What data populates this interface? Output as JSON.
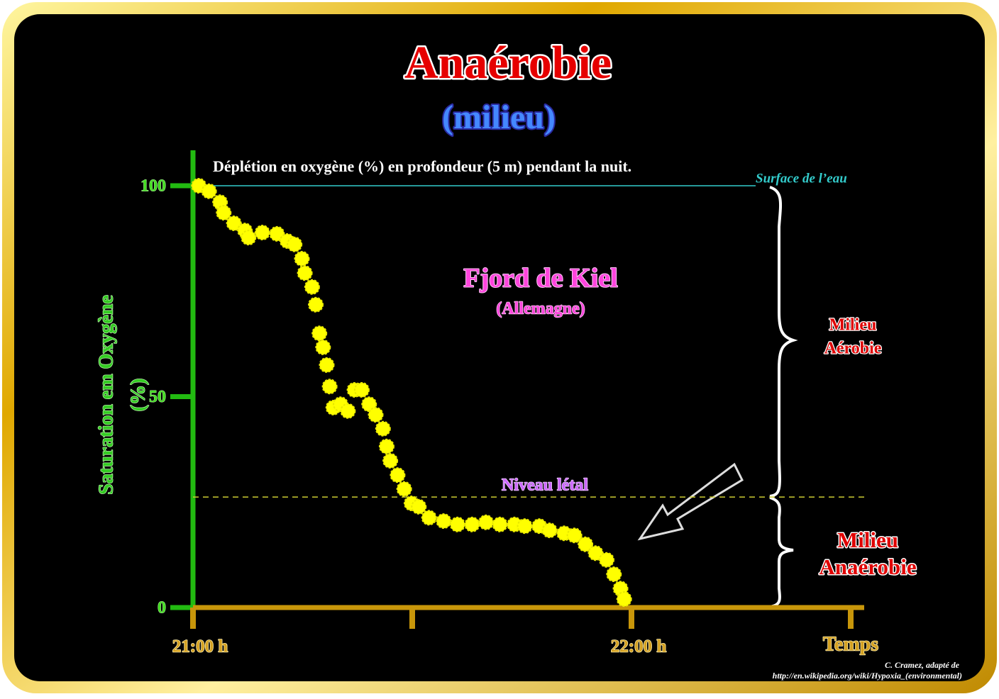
{
  "chart_data": {
    "type": "scatter",
    "title": "Anaérobie",
    "subtitle": "(milieu)",
    "chart_title": "Déplétion en oxygène (%) en profondeur (5 m) pendant la nuit.",
    "ylabel": [
      "Saturation em Oxygène",
      "(%)"
    ],
    "xlabel": "Temps",
    "x": [
      0.8,
      2.2,
      3.7,
      4.2,
      5.6,
      7.1,
      7.6,
      9.5,
      11.5,
      12.9,
      13.9,
      14.9,
      15.3,
      16.3,
      16.8,
      17.3,
      17.8,
      18.3,
      18.7,
      19.2,
      20.2,
      21.2,
      22.1,
      23.1,
      24.1,
      25.0,
      26.0,
      26.5,
      27.0,
      28.0,
      28.9,
      29.9,
      30.9,
      32.3,
      34.3,
      36.2,
      38.2,
      40.1,
      42.0,
      44.0,
      45.4,
      47.4,
      48.8,
      50.8,
      52.2,
      53.7,
      55.1,
      56.6,
      57.6,
      58.5,
      59.0
    ],
    "values": [
      100,
      98.7,
      96.1,
      93.6,
      91.1,
      89.4,
      87.7,
      88.9,
      88.6,
      86.9,
      86.1,
      82.7,
      79.3,
      76.0,
      71.8,
      65.0,
      61.7,
      57.5,
      52.4,
      47.4,
      48.2,
      46.6,
      51.6,
      51.6,
      48.2,
      45.7,
      42.4,
      38.2,
      34.8,
      31.4,
      28.1,
      24.7,
      23.9,
      21.3,
      20.5,
      19.7,
      19.7,
      20.2,
      19.7,
      19.7,
      19.3,
      19.3,
      18.3,
      17.6,
      17.1,
      15.0,
      12.9,
      11.3,
      7.9,
      4.5,
      2.0
    ],
    "color": "#ffff00",
    "xlim": [
      0,
      90
    ],
    "ylim": [
      0,
      100
    ],
    "xticks": [
      {
        "value": 0,
        "label": "21:00 h"
      },
      {
        "value": 60,
        "label": "22:00 h"
      }
    ],
    "minor_xticks": [
      30,
      90
    ],
    "yticks": [
      0,
      50,
      100
    ],
    "surface_label": "Surface de l’eau",
    "lethal_level": {
      "value": 26.2,
      "label": "Niveau létal"
    },
    "place": "Fjord de Kiel",
    "country": "(Allemagne)",
    "aerobic_label": [
      "Milieu",
      "Aérobie"
    ],
    "anaerobic_label": [
      "Milieu",
      "Anaérobie"
    ],
    "credit": [
      "C. Cramez, adapté de",
      "http://en.wikipedia.org/wiki/Hypoxia_(environmental)"
    ]
  }
}
